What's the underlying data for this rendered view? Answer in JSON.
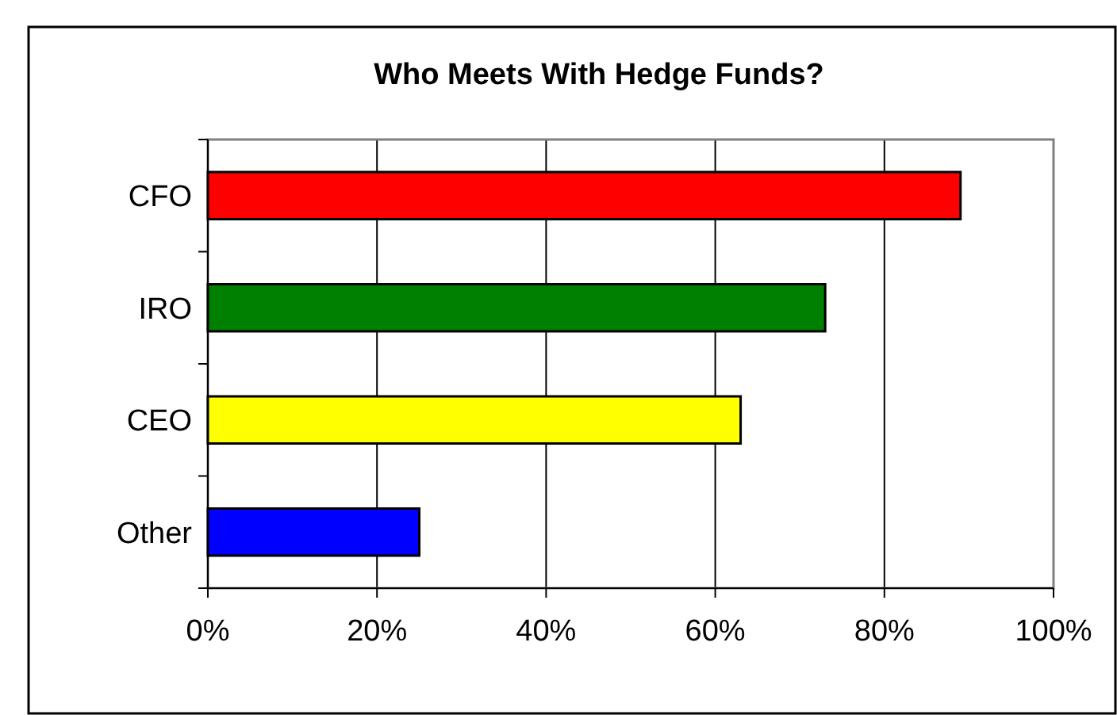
{
  "chart_data": {
    "type": "bar",
    "orientation": "horizontal",
    "title": "Who Meets With Hedge Funds?",
    "categories": [
      "CFO",
      "IRO",
      "CEO",
      "Other"
    ],
    "values": [
      89,
      73,
      63,
      25
    ],
    "colors": [
      "#ff0000",
      "#008000",
      "#ffff00",
      "#0000ff"
    ],
    "xlim": [
      0,
      100
    ],
    "xticks": [
      {
        "value": 0,
        "label": "0%"
      },
      {
        "value": 20,
        "label": "20%"
      },
      {
        "value": 40,
        "label": "40%"
      },
      {
        "value": 60,
        "label": "60%"
      },
      {
        "value": 80,
        "label": "80%"
      },
      {
        "value": 100,
        "label": "100%"
      }
    ],
    "grid": "x"
  }
}
